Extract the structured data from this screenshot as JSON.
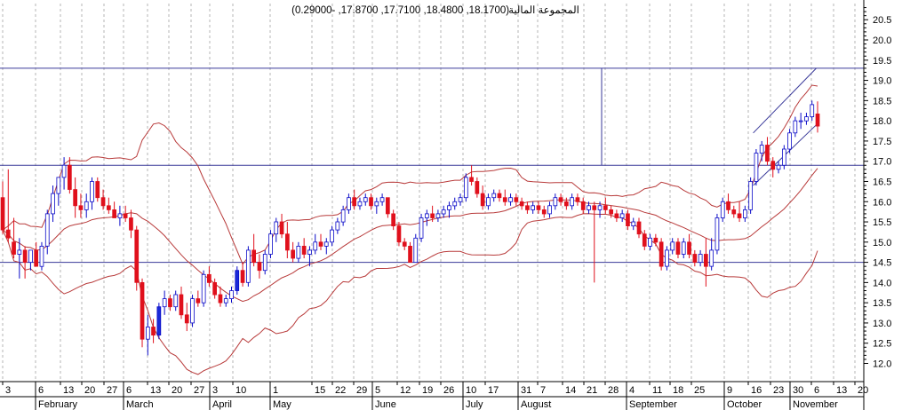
{
  "header": {
    "title": "المجموعة المالية",
    "ohlc": "(18.1700, 18.4800, 17.7100, 17.8700, -0.29000)"
  },
  "colors": {
    "up": "#ffffff",
    "up_outline": "#0a0ac8",
    "down": "#e0101c",
    "band": "#b83a3a",
    "hline": "#3a3a9a",
    "grid": "#b4b4b4",
    "special_up": "#1a2ad8"
  },
  "chart_data": {
    "type": "candlestick",
    "ylim": [
      11.55,
      20.9
    ],
    "y_ticks": [
      12.0,
      12.5,
      13.0,
      13.5,
      14.0,
      14.5,
      15.0,
      15.5,
      16.0,
      16.5,
      17.0,
      17.5,
      18.0,
      18.5,
      19.0,
      19.5,
      20.0,
      20.5
    ],
    "x_day_labels": [
      "3",
      "6",
      "13",
      "20",
      "27",
      "6",
      "13",
      "20",
      "27",
      "3",
      "10",
      "1",
      "15",
      "22",
      "29",
      "5",
      "12",
      "19",
      "26",
      "10",
      "17",
      "31",
      "7",
      "14",
      "21",
      "28",
      "4",
      "11",
      "18",
      "25",
      "9",
      "16",
      "23",
      "30",
      "6",
      "13",
      "20"
    ],
    "months": [
      "February",
      "March",
      "April",
      "May",
      "June",
      "July",
      "August",
      "September",
      "October",
      "November"
    ],
    "horizontal_lines": [
      19.3,
      16.9,
      14.5
    ],
    "channel": {
      "upper": [
        [
          87.2,
          17.7
        ],
        [
          94.5,
          19.3
        ]
      ],
      "lower": [
        [
          87.2,
          16.4
        ],
        [
          94.5,
          17.9
        ]
      ]
    },
    "candles": [
      [
        16.1,
        16.5,
        15.2,
        15.3
      ],
      [
        15.3,
        16.8,
        15.0,
        15.1
      ],
      [
        15.0,
        15.6,
        14.6,
        14.7
      ],
      [
        14.7,
        15.1,
        14.1,
        14.8
      ],
      [
        14.8,
        14.9,
        14.1,
        14.5
      ],
      [
        14.5,
        14.8,
        14.3,
        14.8
      ],
      [
        14.8,
        15.0,
        14.4,
        14.4
      ],
      [
        14.4,
        15.0,
        14.3,
        14.9
      ],
      [
        14.9,
        15.8,
        14.7,
        15.7
      ],
      [
        15.7,
        16.4,
        15.5,
        16.2
      ],
      [
        16.2,
        16.6,
        15.9,
        16.6
      ],
      [
        16.6,
        17.1,
        16.3,
        16.9
      ],
      [
        16.9,
        17.1,
        16.2,
        16.3
      ],
      [
        16.3,
        16.6,
        15.6,
        15.9
      ],
      [
        15.9,
        16.2,
        15.6,
        15.8
      ],
      [
        15.8,
        16.2,
        15.6,
        16.0
      ],
      [
        16.0,
        16.6,
        15.8,
        16.5
      ],
      [
        16.5,
        16.6,
        16.0,
        16.1
      ],
      [
        16.1,
        16.3,
        15.8,
        15.9
      ],
      [
        15.9,
        16.1,
        15.7,
        15.8
      ],
      [
        15.8,
        16.0,
        15.6,
        15.6
      ],
      [
        15.6,
        15.9,
        15.4,
        15.7
      ],
      [
        15.7,
        15.9,
        15.5,
        15.6
      ],
      [
        15.6,
        15.8,
        15.1,
        15.3
      ],
      [
        15.3,
        15.4,
        13.8,
        14.0
      ],
      [
        14.0,
        14.1,
        12.4,
        12.6
      ],
      [
        12.6,
        13.2,
        12.2,
        12.9
      ],
      [
        12.9,
        13.1,
        12.5,
        12.7
      ],
      [
        12.7,
        13.5,
        12.6,
        13.4
      ],
      [
        13.4,
        13.8,
        13.2,
        13.6
      ],
      [
        13.6,
        13.7,
        13.3,
        13.4
      ],
      [
        13.4,
        13.8,
        13.3,
        13.7
      ],
      [
        13.7,
        13.9,
        13.1,
        13.2
      ],
      [
        13.2,
        13.5,
        12.8,
        13.0
      ],
      [
        13.0,
        13.7,
        12.9,
        13.6
      ],
      [
        13.6,
        13.8,
        13.4,
        13.5
      ],
      [
        13.5,
        14.3,
        13.4,
        14.2
      ],
      [
        14.2,
        14.4,
        13.9,
        14.0
      ],
      [
        14.0,
        14.1,
        13.6,
        13.7
      ],
      [
        13.7,
        13.9,
        13.4,
        13.5
      ],
      [
        13.5,
        13.7,
        13.4,
        13.6
      ],
      [
        13.6,
        13.9,
        13.5,
        13.8
      ],
      [
        13.8,
        14.4,
        13.7,
        14.3
      ],
      [
        14.3,
        14.5,
        13.9,
        14.0
      ],
      [
        14.0,
        14.9,
        13.9,
        14.8
      ],
      [
        14.8,
        15.2,
        14.4,
        14.5
      ],
      [
        14.5,
        14.7,
        14.1,
        14.3
      ],
      [
        14.3,
        14.8,
        14.2,
        14.7
      ],
      [
        14.7,
        15.3,
        14.6,
        15.2
      ],
      [
        15.2,
        15.6,
        15.0,
        15.5
      ],
      [
        15.5,
        15.7,
        15.1,
        15.2
      ],
      [
        15.2,
        15.5,
        14.6,
        14.8
      ],
      [
        14.8,
        15.0,
        14.5,
        14.6
      ],
      [
        14.6,
        15.0,
        14.5,
        14.9
      ],
      [
        14.9,
        15.1,
        14.6,
        14.7
      ],
      [
        14.7,
        14.9,
        14.4,
        14.8
      ],
      [
        14.8,
        15.2,
        14.7,
        15.0
      ],
      [
        15.0,
        15.2,
        14.8,
        14.9
      ],
      [
        14.9,
        15.1,
        14.7,
        15.0
      ],
      [
        15.0,
        15.4,
        14.9,
        15.3
      ],
      [
        15.3,
        15.6,
        15.2,
        15.5
      ],
      [
        15.5,
        15.9,
        15.4,
        15.8
      ],
      [
        15.8,
        16.2,
        15.7,
        16.1
      ],
      [
        16.1,
        16.3,
        15.8,
        15.9
      ],
      [
        15.9,
        16.1,
        15.8,
        16.0
      ],
      [
        16.0,
        16.2,
        15.9,
        16.1
      ],
      [
        16.1,
        16.2,
        15.8,
        15.9
      ],
      [
        15.9,
        16.1,
        15.7,
        16.0
      ],
      [
        16.0,
        16.2,
        15.9,
        16.1
      ],
      [
        16.1,
        16.1,
        15.6,
        15.7
      ],
      [
        15.7,
        15.8,
        15.3,
        15.4
      ],
      [
        15.4,
        15.5,
        14.9,
        15.0
      ],
      [
        15.0,
        15.1,
        14.8,
        14.9
      ],
      [
        14.9,
        15.0,
        14.5,
        14.5
      ],
      [
        14.5,
        15.2,
        14.5,
        15.1
      ],
      [
        15.1,
        15.7,
        15.0,
        15.6
      ],
      [
        15.6,
        15.8,
        15.4,
        15.7
      ],
      [
        15.7,
        15.9,
        15.5,
        15.6
      ],
      [
        15.6,
        15.8,
        15.5,
        15.7
      ],
      [
        15.7,
        15.9,
        15.6,
        15.8
      ],
      [
        15.8,
        16.0,
        15.6,
        15.9
      ],
      [
        15.9,
        16.1,
        15.8,
        16.0
      ],
      [
        16.0,
        16.2,
        15.9,
        16.1
      ],
      [
        16.1,
        16.7,
        16.0,
        16.6
      ],
      [
        16.6,
        16.9,
        16.4,
        16.5
      ],
      [
        16.5,
        16.6,
        16.1,
        16.2
      ],
      [
        16.2,
        16.4,
        15.8,
        15.9
      ],
      [
        15.9,
        16.2,
        15.8,
        16.1
      ],
      [
        16.1,
        16.3,
        16.0,
        16.2
      ],
      [
        16.2,
        16.3,
        16.0,
        16.1
      ],
      [
        16.1,
        16.3,
        15.9,
        16.0
      ],
      [
        16.0,
        16.2,
        15.9,
        16.1
      ],
      [
        16.1,
        16.2,
        15.9,
        16.0
      ],
      [
        16.0,
        16.1,
        15.8,
        15.9
      ],
      [
        15.9,
        16.0,
        15.7,
        15.8
      ],
      [
        15.8,
        16.0,
        15.7,
        15.9
      ],
      [
        15.9,
        16.0,
        15.7,
        15.8
      ],
      [
        15.8,
        15.9,
        15.6,
        15.7
      ],
      [
        15.7,
        16.0,
        15.6,
        15.9
      ],
      [
        15.9,
        16.2,
        15.8,
        16.1
      ],
      [
        16.1,
        16.2,
        15.9,
        16.0
      ],
      [
        16.0,
        16.1,
        15.8,
        15.9
      ],
      [
        15.9,
        16.2,
        15.8,
        16.1
      ],
      [
        16.1,
        16.2,
        15.9,
        16.0
      ],
      [
        16.0,
        16.1,
        15.7,
        15.8
      ],
      [
        15.8,
        16.0,
        15.7,
        15.9
      ],
      [
        15.9,
        16.0,
        14.0,
        15.8
      ],
      [
        15.8,
        16.0,
        15.6,
        15.9
      ],
      [
        15.9,
        16.1,
        15.7,
        15.8
      ],
      [
        15.8,
        15.9,
        15.6,
        15.7
      ],
      [
        15.7,
        15.8,
        15.5,
        15.6
      ],
      [
        15.6,
        15.8,
        15.5,
        15.7
      ],
      [
        15.7,
        15.8,
        15.3,
        15.4
      ],
      [
        15.4,
        15.6,
        15.3,
        15.5
      ],
      [
        15.5,
        15.6,
        15.1,
        15.2
      ],
      [
        15.2,
        15.3,
        14.8,
        14.9
      ],
      [
        14.9,
        15.2,
        14.8,
        15.1
      ],
      [
        15.1,
        15.2,
        14.9,
        15.0
      ],
      [
        15.0,
        15.1,
        14.3,
        14.4
      ],
      [
        14.4,
        14.9,
        14.3,
        14.8
      ],
      [
        14.8,
        15.1,
        14.7,
        15.0
      ],
      [
        15.0,
        15.1,
        14.6,
        14.7
      ],
      [
        14.7,
        15.1,
        14.6,
        15.0
      ],
      [
        15.0,
        15.2,
        14.6,
        14.7
      ],
      [
        14.7,
        14.8,
        14.4,
        14.5
      ],
      [
        14.5,
        14.8,
        14.4,
        14.7
      ],
      [
        14.7,
        15.1,
        13.9,
        14.4
      ],
      [
        14.4,
        15.1,
        14.3,
        14.8
      ],
      [
        14.8,
        15.7,
        14.7,
        15.6
      ],
      [
        15.6,
        16.1,
        15.5,
        16.0
      ],
      [
        16.0,
        16.2,
        15.7,
        15.8
      ],
      [
        15.8,
        15.9,
        15.6,
        15.7
      ],
      [
        15.7,
        16.0,
        15.5,
        15.6
      ],
      [
        15.6,
        15.9,
        15.5,
        15.8
      ],
      [
        15.8,
        16.6,
        15.7,
        16.5
      ],
      [
        16.5,
        17.3,
        16.4,
        17.2
      ],
      [
        17.2,
        17.5,
        17.0,
        17.4
      ],
      [
        17.4,
        17.6,
        16.9,
        17.0
      ],
      [
        17.0,
        17.1,
        16.6,
        16.8
      ],
      [
        16.8,
        17.0,
        16.7,
        16.9
      ],
      [
        16.9,
        17.4,
        16.8,
        17.3
      ],
      [
        17.3,
        17.8,
        17.2,
        17.7
      ],
      [
        17.7,
        18.1,
        17.6,
        18.0
      ],
      [
        18.0,
        18.2,
        17.8,
        18.0
      ],
      [
        18.0,
        18.2,
        17.9,
        18.1
      ],
      [
        18.1,
        18.5,
        18.0,
        18.4
      ],
      [
        18.17,
        18.48,
        17.71,
        17.87
      ]
    ]
  }
}
